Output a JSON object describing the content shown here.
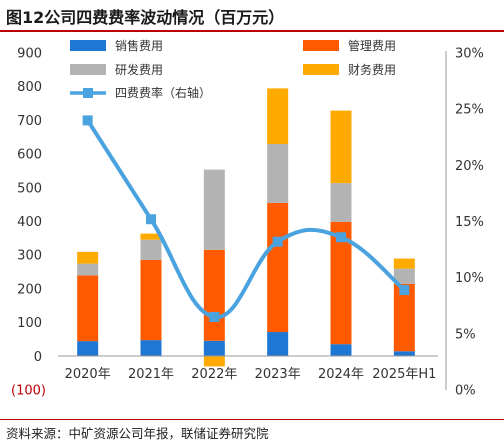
{
  "title": "图12公司四费费率波动情况（百万元）",
  "source": "资料来源：中矿资源公司年报，联储证券研究院",
  "colors": {
    "selling": "#1f77d4",
    "management": "#ff5a00",
    "rd": "#b3b3b3",
    "finance": "#ffaa00",
    "rate": "#4aa3df",
    "accent_rule": "#c00000"
  },
  "chart_data": {
    "type": "bar",
    "stacked": true,
    "categories": [
      "2020年",
      "2021年",
      "2022年",
      "2023年",
      "2024年",
      "2025年H1"
    ],
    "series": [
      {
        "name": "销售费用",
        "axis": "left",
        "values": [
          45,
          48,
          46,
          72,
          36,
          15
        ]
      },
      {
        "name": "管理费用",
        "axis": "left",
        "values": [
          195,
          238,
          270,
          383,
          363,
          200
        ]
      },
      {
        "name": "研发费用",
        "axis": "left",
        "values": [
          35,
          60,
          238,
          175,
          115,
          45
        ]
      },
      {
        "name": "财务费用",
        "axis": "left",
        "values": [
          35,
          18,
          -30,
          165,
          215,
          30
        ]
      },
      {
        "name": "四费费率（右轴）",
        "type": "line",
        "axis": "right",
        "values": [
          24.0,
          15.2,
          6.5,
          13.2,
          13.6,
          8.9
        ]
      }
    ],
    "y_left": {
      "ticks": [
        0,
        100,
        200,
        300,
        400,
        500,
        600,
        700,
        800,
        900
      ],
      "ylim": [
        -100,
        900
      ],
      "negative_label": "(100)"
    },
    "y_right": {
      "ticks": [
        "0%",
        "5%",
        "10%",
        "15%",
        "20%",
        "25%",
        "30%"
      ],
      "ylim": [
        0,
        30
      ]
    },
    "legend": {
      "position": "top",
      "columns": 2
    },
    "grid": false
  }
}
